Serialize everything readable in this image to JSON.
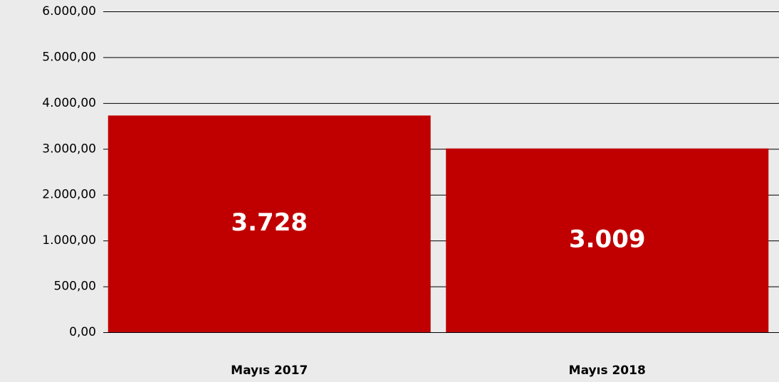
{
  "chart_data": {
    "type": "bar",
    "categories": [
      "Mayıs 2017",
      "Mayıs 2018"
    ],
    "values": [
      3728,
      3009
    ],
    "value_labels": [
      "3.728",
      "3.009"
    ],
    "color": "#c00000",
    "ylim": [
      0,
      6000
    ],
    "yticks": [
      {
        "value": 0,
        "label": "0,00"
      },
      {
        "value": 500,
        "label": "500,00"
      },
      {
        "value": 1000,
        "label": "1.000,00"
      },
      {
        "value": 2000,
        "label": "2.000,00"
      },
      {
        "value": 3000,
        "label": "3.000,00"
      },
      {
        "value": 4000,
        "label": "4.000,00"
      },
      {
        "value": 5000,
        "label": "5.000,00"
      },
      {
        "value": 6000,
        "label": "6.000,00"
      }
    ],
    "grid": true
  }
}
